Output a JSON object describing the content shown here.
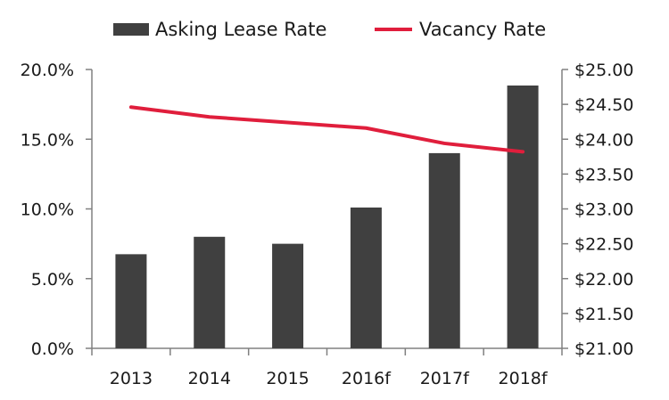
{
  "chart_data": {
    "type": "bar",
    "categories": [
      "2013",
      "2014",
      "2015",
      "2016f",
      "2017f",
      "2018f"
    ],
    "series": [
      {
        "name": "Asking Lease Rate",
        "type": "bar",
        "axis": "right",
        "color": "#404040",
        "values": [
          22.35,
          22.6,
          22.5,
          23.02,
          23.8,
          24.77
        ]
      },
      {
        "name": "Vacancy Rate",
        "type": "line",
        "axis": "left",
        "color": "#e01e3c",
        "values": [
          17.3,
          16.6,
          16.2,
          15.8,
          14.7,
          14.1
        ]
      }
    ],
    "y_left": {
      "ticks": [
        "0.0%",
        "5.0%",
        "10.0%",
        "15.0%",
        "20.0%"
      ],
      "ylim": [
        0,
        20
      ]
    },
    "y_right": {
      "ticks": [
        "$21.00",
        "$21.50",
        "$22.00",
        "$22.50",
        "$23.00",
        "$23.50",
        "$24.00",
        "$24.50",
        "$25.00"
      ],
      "ylim": [
        21,
        25
      ]
    },
    "grid": false,
    "legend": "top-center"
  }
}
